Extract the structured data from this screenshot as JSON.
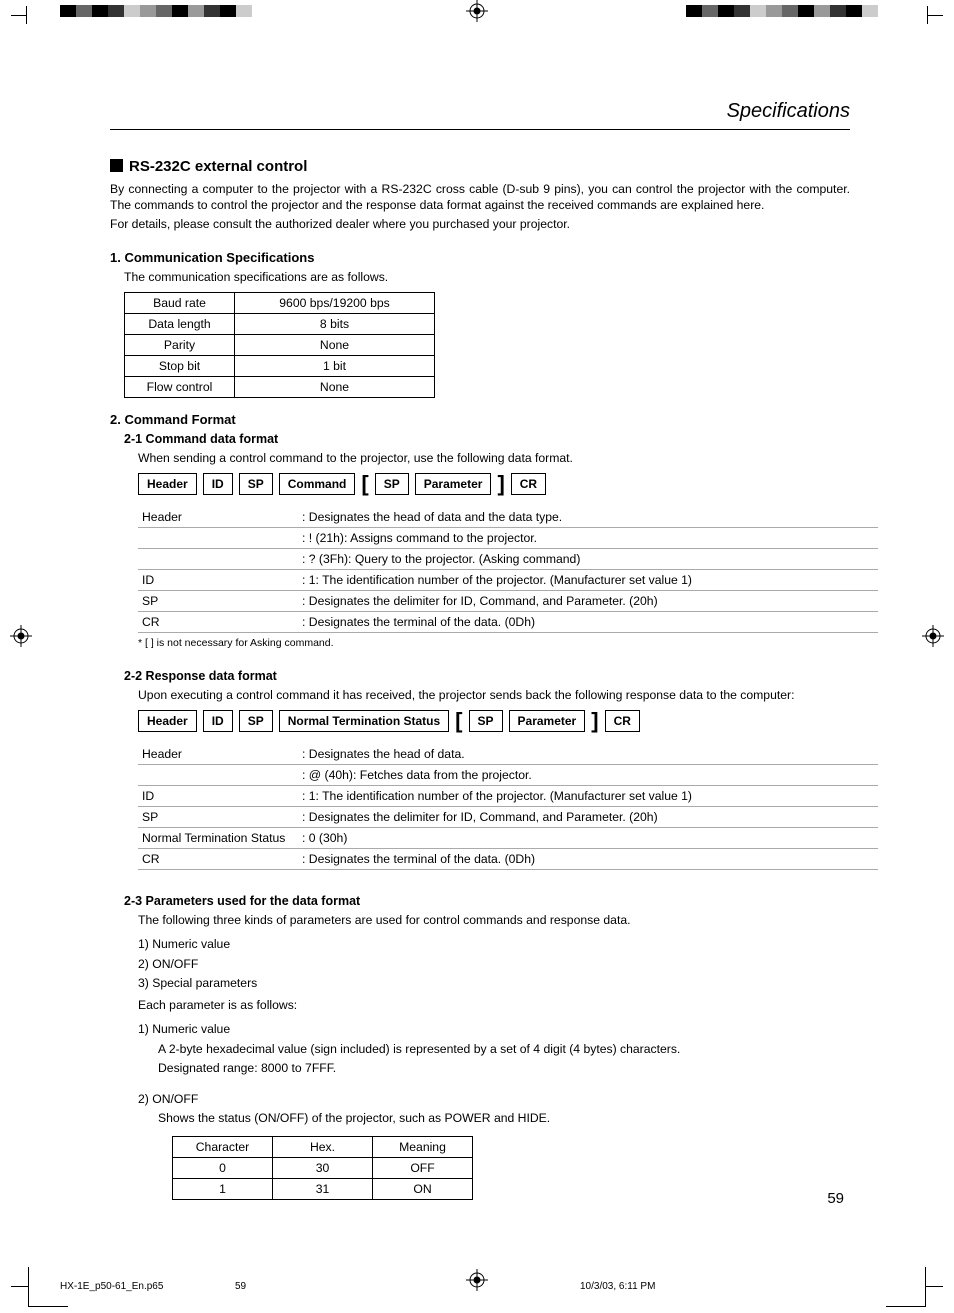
{
  "header_title": "Specifications",
  "section_title": "RS-232C external control",
  "intro_p1": "By connecting a computer to the projector with a RS-232C cross cable (D-sub 9 pins), you can control the projector with the computer. The commands to control the projector and the response data format against the received commands are explained here.",
  "intro_p2": "For details, please consult the authorized dealer where you purchased your projector.",
  "sub1_title": "1.  Communication Specifications",
  "sub1_desc": "The communication specifications are as follows.",
  "comm_table": {
    "rows": [
      [
        "Baud rate",
        "9600 bps/19200 bps"
      ],
      [
        "Data length",
        "8 bits"
      ],
      [
        "Parity",
        "None"
      ],
      [
        "Stop bit",
        "1 bit"
      ],
      [
        "Flow control",
        "None"
      ]
    ]
  },
  "sub2_title": "2.  Command Format",
  "sub2_1_title": "2-1 Command data format",
  "sub2_1_desc": "When sending a control command to the projector, use the following data format.",
  "fmt1": {
    "f1": "Header",
    "f2": "ID",
    "f3": "SP",
    "f4": "Command",
    "f5": "SP",
    "f6": "Parameter",
    "f7": "CR"
  },
  "desc1": {
    "rows": [
      [
        "Header",
        ": Designates the head of data and the data type."
      ],
      [
        "",
        ": ! (21h): Assigns command to the projector."
      ],
      [
        "",
        ": ? (3Fh): Query to the projector. (Asking command)"
      ],
      [
        "ID",
        ": 1: The identification number of the projector. (Manufacturer set value 1)"
      ],
      [
        "SP",
        ": Designates the delimiter for ID, Command, and Parameter. (20h)"
      ],
      [
        "CR",
        ": Designates the terminal of the data. (0Dh)"
      ]
    ]
  },
  "footnote1": "* [  ] is not necessary for Asking command.",
  "sub2_2_title": "2-2 Response data format",
  "sub2_2_desc": "Upon executing a control command it has received, the projector sends back the following response data to the computer:",
  "fmt2": {
    "f1": "Header",
    "f2": "ID",
    "f3": "SP",
    "f4": "Normal Termination Status",
    "f5": "SP",
    "f6": "Parameter",
    "f7": "CR"
  },
  "desc2": {
    "rows": [
      [
        "Header",
        ": Designates the head of data."
      ],
      [
        "",
        ": @ (40h): Fetches data from the projector."
      ],
      [
        "ID",
        ": 1: The identification number of the projector. (Manufacturer set value 1)"
      ],
      [
        "SP",
        ": Designates the delimiter for ID, Command, and Parameter. (20h)"
      ],
      [
        "Normal Termination Status",
        ": 0 (30h)"
      ],
      [
        "CR",
        ": Designates the terminal of the data. (0Dh)"
      ]
    ]
  },
  "sub2_3_title": "2-3 Parameters used for the data format",
  "sub2_3_desc": "The following three kinds of parameters are used for control commands and response data.",
  "param_kinds": [
    "1)  Numeric value",
    "2)  ON/OFF",
    "3)  Special parameters"
  ],
  "param_each": "Each parameter is as follows:",
  "param1_head": "1)  Numeric value",
  "param1_l1": "A 2-byte hexadecimal value (sign included) is represented by a set of 4 digit (4 bytes) characters.",
  "param1_l2": "Designated range: 8000 to 7FFF.",
  "param2_head": "2)  ON/OFF",
  "param2_desc": "Shows the status (ON/OFF) of the projector, such as POWER and HIDE.",
  "onoff_table": {
    "header": [
      "Character",
      "Hex.",
      "Meaning"
    ],
    "rows": [
      [
        "0",
        "30",
        "OFF"
      ],
      [
        "1",
        "31",
        "ON"
      ]
    ]
  },
  "page_number": "59",
  "footer": {
    "file": "HX-1E_p50-61_En.p65",
    "pg": "59",
    "dt": "10/3/03, 6:11 PM"
  },
  "reg_colors": [
    "#000000",
    "#666666",
    "#000000",
    "#333333",
    "#cccccc",
    "#999999",
    "#666666",
    "#000000",
    "#999999",
    "#333333",
    "#000000",
    "#cccccc",
    "#ffffff"
  ]
}
